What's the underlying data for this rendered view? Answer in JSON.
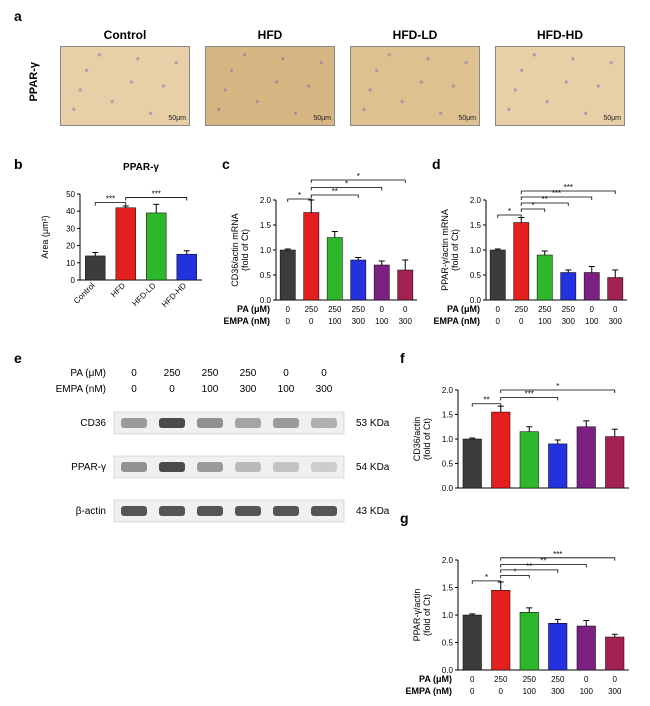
{
  "labels": {
    "a": "a",
    "b": "b",
    "c": "c",
    "d": "d",
    "e": "e",
    "f": "f",
    "g": "g"
  },
  "panelA": {
    "row_label": "PPAR-γ",
    "groups": [
      "Control",
      "HFD",
      "HFD-LD",
      "HFD-HD"
    ],
    "scalebar": "50μm",
    "tint": "#e8cfa8"
  },
  "panelB": {
    "title": "PPAR-γ",
    "ylabel": "Area (μm²)",
    "ylim": [
      0,
      50
    ],
    "yticks": [
      0,
      10,
      20,
      30,
      40,
      50
    ],
    "categories": [
      "Control",
      "HFD",
      "HFD-LD",
      "HFD-HD"
    ],
    "values": [
      14,
      42,
      39,
      15
    ],
    "errors": [
      2,
      1,
      5,
      2
    ],
    "colors": [
      "#3c3c3c",
      "#e4201f",
      "#2fb72b",
      "#2331df"
    ],
    "sig": [
      {
        "i1": 0,
        "i2": 1,
        "y": 45,
        "text": "***"
      },
      {
        "i1": 1,
        "i2": 3,
        "y": 48,
        "text": "***"
      }
    ]
  },
  "sixGroup": {
    "categories": [
      {
        "pa": "0",
        "empa": "0"
      },
      {
        "pa": "250",
        "empa": "0"
      },
      {
        "pa": "250",
        "empa": "100"
      },
      {
        "pa": "250",
        "empa": "300"
      },
      {
        "pa": "0",
        "empa": "100"
      },
      {
        "pa": "0",
        "empa": "300"
      }
    ],
    "colors": [
      "#3c3c3c",
      "#e4201f",
      "#2fb72b",
      "#2331df",
      "#7c2181",
      "#a32153"
    ],
    "pa_label": "PA (μM)",
    "empa_label": "EMPA (nM)"
  },
  "panelC": {
    "ylabel": "CD36/actin mRNA\n(fold of Ct)",
    "ylim": [
      0,
      2.0
    ],
    "yticks": [
      0.0,
      0.5,
      1.0,
      1.5,
      2.0
    ],
    "values": [
      1.0,
      1.75,
      1.25,
      0.8,
      0.7,
      0.6
    ],
    "errors": [
      0.02,
      0.25,
      0.12,
      0.05,
      0.08,
      0.2
    ],
    "sig": [
      {
        "i1": 0,
        "i2": 1,
        "y": 2.02,
        "text": "*"
      },
      {
        "i1": 1,
        "i2": 3,
        "y": 2.1,
        "text": "**"
      },
      {
        "i1": 1,
        "i2": 4,
        "y": 2.25,
        "text": "*"
      },
      {
        "i1": 1,
        "i2": 5,
        "y": 2.4,
        "text": "*"
      }
    ]
  },
  "panelD": {
    "ylabel": "PPAR-γ/actin mRNA\n(fold of Ct)",
    "ylim": [
      0,
      2.0
    ],
    "yticks": [
      0.0,
      0.5,
      1.0,
      1.5,
      2.0
    ],
    "values": [
      1.0,
      1.55,
      0.9,
      0.55,
      0.55,
      0.45
    ],
    "errors": [
      0.02,
      0.1,
      0.08,
      0.05,
      0.12,
      0.15
    ],
    "sig": [
      {
        "i1": 0,
        "i2": 1,
        "y": 1.7,
        "text": "*"
      },
      {
        "i1": 1,
        "i2": 2,
        "y": 1.82,
        "text": "*"
      },
      {
        "i1": 1,
        "i2": 3,
        "y": 1.94,
        "text": "**"
      },
      {
        "i1": 1,
        "i2": 4,
        "y": 2.06,
        "text": "***"
      },
      {
        "i1": 1,
        "i2": 5,
        "y": 2.18,
        "text": "***"
      }
    ]
  },
  "panelE": {
    "rows": [
      {
        "label": "CD36",
        "kda": "53 KDa",
        "intensity": [
          0.5,
          0.9,
          0.55,
          0.45,
          0.5,
          0.4
        ]
      },
      {
        "label": "PPAR-γ",
        "kda": "54 KDa",
        "intensity": [
          0.55,
          0.9,
          0.5,
          0.35,
          0.3,
          0.25
        ]
      },
      {
        "label": "β-actin",
        "kda": "43 KDa",
        "intensity": [
          0.85,
          0.85,
          0.85,
          0.85,
          0.85,
          0.85
        ]
      }
    ],
    "header": {
      "pa": [
        "0",
        "250",
        "250",
        "250",
        "0",
        "0"
      ],
      "empa": [
        "0",
        "0",
        "100",
        "300",
        "100",
        "300"
      ]
    }
  },
  "panelF": {
    "ylabel": "CD36/actin\n(fold of Ct)",
    "ylim": [
      0,
      2.0
    ],
    "yticks": [
      0.0,
      0.5,
      1.0,
      1.5,
      2.0
    ],
    "values": [
      1.0,
      1.55,
      1.15,
      0.9,
      1.25,
      1.05
    ],
    "errors": [
      0.02,
      0.12,
      0.1,
      0.08,
      0.12,
      0.15
    ],
    "sig": [
      {
        "i1": 0,
        "i2": 1,
        "y": 1.72,
        "text": "**"
      },
      {
        "i1": 1,
        "i2": 3,
        "y": 1.85,
        "text": "***"
      },
      {
        "i1": 1,
        "i2": 5,
        "y": 2.0,
        "text": "*"
      }
    ]
  },
  "panelG": {
    "ylabel": "PPAR-γ/actin\n(fold of Ct)",
    "ylim": [
      0,
      2.0
    ],
    "yticks": [
      0.0,
      0.5,
      1.0,
      1.5,
      2.0
    ],
    "values": [
      1.0,
      1.45,
      1.05,
      0.85,
      0.8,
      0.6
    ],
    "errors": [
      0.02,
      0.15,
      0.08,
      0.07,
      0.1,
      0.05
    ],
    "sig": [
      {
        "i1": 0,
        "i2": 1,
        "y": 1.62,
        "text": "*"
      },
      {
        "i1": 1,
        "i2": 2,
        "y": 1.72,
        "text": "*"
      },
      {
        "i1": 1,
        "i2": 3,
        "y": 1.82,
        "text": "**"
      },
      {
        "i1": 1,
        "i2": 4,
        "y": 1.92,
        "text": "**"
      },
      {
        "i1": 1,
        "i2": 5,
        "y": 2.04,
        "text": "***"
      }
    ]
  }
}
